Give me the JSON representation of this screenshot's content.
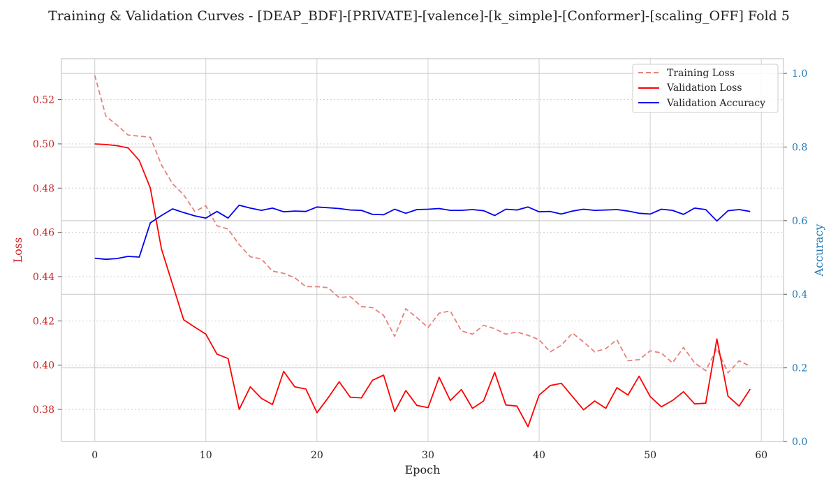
{
  "chart_data": {
    "type": "line",
    "title": "Training & Validation Curves - [DEAP_BDF]-[PRIVATE]-[valence]-[k_simple]-[Conformer]-[scaling_OFF] Fold 5",
    "xlabel": "Epoch",
    "ylabel_left": "Loss",
    "ylabel_right": "Accuracy",
    "xlim": [
      -3,
      62
    ],
    "ylim_left": [
      0.3655,
      0.5385
    ],
    "ylim_right": [
      0.0,
      1.04
    ],
    "x_ticks": [
      0,
      10,
      20,
      30,
      40,
      50,
      60
    ],
    "y_ticks_left": [
      0.38,
      0.4,
      0.42,
      0.44,
      0.46,
      0.48,
      0.5,
      0.52
    ],
    "y_ticks_right": [
      0.0,
      0.2,
      0.4,
      0.6,
      0.8,
      1.0
    ],
    "y_tick_labels_left": [
      "0.38",
      "0.40",
      "0.42",
      "0.44",
      "0.46",
      "0.48",
      "0.50",
      "0.52"
    ],
    "y_tick_labels_right": [
      "0.0",
      "0.2",
      "0.4",
      "0.6",
      "0.8",
      "1.0"
    ],
    "grid": true,
    "legend_position": "top-right",
    "colors": {
      "training_loss": "#e8827c",
      "validation_loss": "#ff0000",
      "validation_accuracy": "#0000ee",
      "left_axis": "#cc2222",
      "right_axis": "#1f77b4"
    },
    "x": [
      0,
      1,
      2,
      3,
      4,
      5,
      6,
      7,
      8,
      9,
      10,
      11,
      12,
      13,
      14,
      15,
      16,
      17,
      18,
      19,
      20,
      21,
      22,
      23,
      24,
      25,
      26,
      27,
      28,
      29,
      30,
      31,
      32,
      33,
      34,
      35,
      36,
      37,
      38,
      39,
      40,
      41,
      42,
      43,
      44,
      45,
      46,
      47,
      48,
      49,
      50,
      51,
      52,
      53,
      54,
      55,
      56,
      57,
      58,
      59
    ],
    "series": [
      {
        "name": "Training Loss",
        "axis": "left",
        "style": "dashed",
        "values": [
          0.531,
          0.5125,
          0.5085,
          0.504,
          0.5035,
          0.503,
          0.4905,
          0.482,
          0.477,
          0.4695,
          0.472,
          0.463,
          0.4615,
          0.4545,
          0.449,
          0.448,
          0.4425,
          0.4415,
          0.4395,
          0.4355,
          0.4355,
          0.435,
          0.4305,
          0.431,
          0.4265,
          0.426,
          0.4225,
          0.413,
          0.4255,
          0.4215,
          0.417,
          0.4235,
          0.4245,
          0.4155,
          0.414,
          0.418,
          0.4165,
          0.414,
          0.415,
          0.4135,
          0.4115,
          0.406,
          0.409,
          0.4145,
          0.4105,
          0.406,
          0.4075,
          0.4115,
          0.402,
          0.4025,
          0.4065,
          0.4055,
          0.401,
          0.408,
          0.401,
          0.3975,
          0.4075,
          0.3965,
          0.402,
          0.3995
        ]
      },
      {
        "name": "Validation Loss",
        "axis": "left",
        "style": "solid",
        "values": [
          0.5,
          0.4997,
          0.4992,
          0.4982,
          0.4925,
          0.48,
          0.4525,
          0.4365,
          0.4205,
          0.4172,
          0.414,
          0.405,
          0.403,
          0.38,
          0.3902,
          0.385,
          0.3822,
          0.3972,
          0.3902,
          0.3892,
          0.3785,
          0.3852,
          0.3925,
          0.3855,
          0.3852,
          0.3932,
          0.3955,
          0.379,
          0.3885,
          0.3818,
          0.3808,
          0.3945,
          0.384,
          0.389,
          0.3805,
          0.3838,
          0.3968,
          0.382,
          0.3815,
          0.3722,
          0.3865,
          0.3908,
          0.3918,
          0.3858,
          0.3798,
          0.3838,
          0.3805,
          0.3898,
          0.3865,
          0.395,
          0.3858,
          0.3812,
          0.384,
          0.388,
          0.3825,
          0.3828,
          0.4118,
          0.386,
          0.3815,
          0.3892
        ]
      },
      {
        "name": "Validation Accuracy",
        "axis": "right",
        "style": "solid",
        "values": [
          0.498,
          0.495,
          0.497,
          0.503,
          0.501,
          0.594,
          0.614,
          0.632,
          0.622,
          0.613,
          0.607,
          0.625,
          0.607,
          0.642,
          0.634,
          0.628,
          0.634,
          0.624,
          0.626,
          0.625,
          0.637,
          0.635,
          0.633,
          0.629,
          0.628,
          0.617,
          0.616,
          0.631,
          0.62,
          0.63,
          0.631,
          0.633,
          0.628,
          0.628,
          0.63,
          0.627,
          0.614,
          0.631,
          0.629,
          0.637,
          0.624,
          0.625,
          0.618,
          0.626,
          0.631,
          0.628,
          0.629,
          0.63,
          0.626,
          0.62,
          0.618,
          0.631,
          0.628,
          0.617,
          0.634,
          0.63,
          0.599,
          0.627,
          0.63,
          0.625
        ]
      }
    ]
  }
}
